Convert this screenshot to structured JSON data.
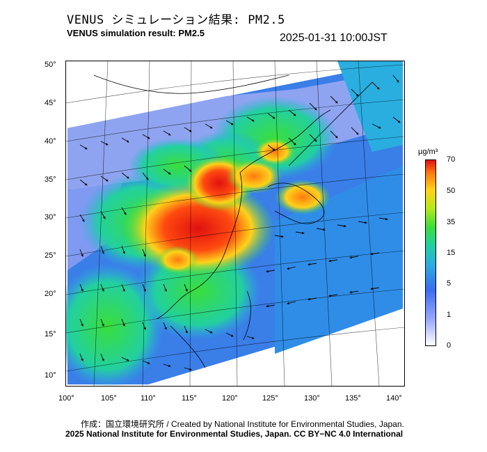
{
  "header": {
    "title_jp": "VENUS シミュレーション結果: PM2.5",
    "title_en": "VENUS simulation result: PM2.5",
    "timestamp": "2025-01-31 10:00JST"
  },
  "map": {
    "lat_labels": [
      "50°",
      "45°",
      "40°",
      "35°",
      "30°",
      "25°",
      "20°",
      "15°",
      "10°"
    ],
    "lon_labels": [
      "100°",
      "105°",
      "110°",
      "115°",
      "120°",
      "125°",
      "130°",
      "135°",
      "140°"
    ],
    "icon": "pm25-concentration-wind-map"
  },
  "colorbar": {
    "unit": "µg/m³",
    "labels": [
      "70",
      "50",
      "35",
      "15",
      "5",
      "1",
      "0"
    ],
    "colors": [
      "#ffffff",
      "#9aa8ff",
      "#3a6cf0",
      "#2aaee0",
      "#22d0a0",
      "#3ade3a",
      "#b8e81a",
      "#ffd21a",
      "#ff7a10",
      "#e01010"
    ]
  },
  "footer": {
    "credit_line1": "作成：国立環境研究所 / Created by National Institute for Environmental Studies, Japan.",
    "credit_line2": "2025 National Institute for Environmental Studies, Japan. CC BY−NC 4.0 International"
  }
}
